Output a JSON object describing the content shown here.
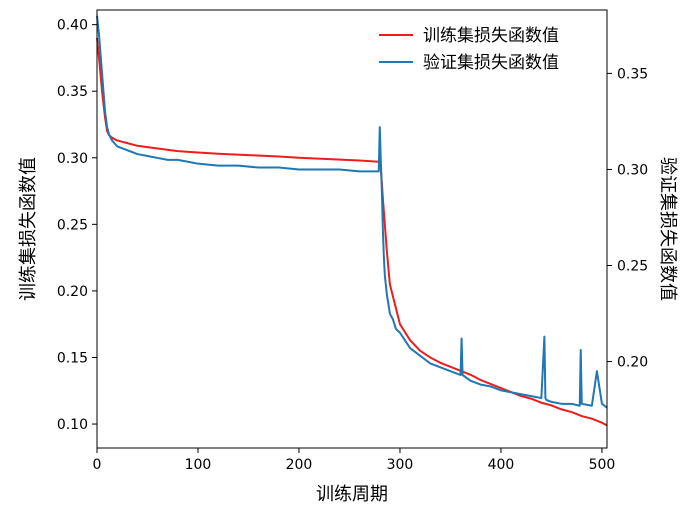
{
  "chart_data": {
    "type": "line",
    "xlabel": "训练周期",
    "ylabel_left": "训练集损失函数值",
    "ylabel_right": "验证集损失函数值",
    "xlim": [
      0,
      505
    ],
    "ylim_left": [
      0.082,
      0.411
    ],
    "ylim_right": [
      0.155,
      0.383
    ],
    "x_ticks": [
      0,
      100,
      200,
      300,
      400,
      500
    ],
    "y_ticks_left": [
      0.1,
      0.15,
      0.2,
      0.25,
      0.3,
      0.35,
      0.4
    ],
    "y_ticks_right": [
      0.2,
      0.25,
      0.3,
      0.35
    ],
    "grid": false,
    "legend_position": "top-right",
    "series": [
      {
        "name": "训练集损失函数值",
        "axis": "left",
        "color": "#ee1c1c",
        "x": [
          0,
          2,
          5,
          8,
          10,
          12,
          15,
          20,
          30,
          40,
          50,
          60,
          80,
          100,
          120,
          150,
          180,
          200,
          230,
          260,
          279,
          280,
          281,
          282,
          283,
          285,
          287,
          290,
          295,
          300,
          310,
          320,
          330,
          340,
          350,
          360,
          370,
          380,
          390,
          400,
          410,
          420,
          430,
          440,
          450,
          460,
          470,
          480,
          490,
          500,
          505
        ],
        "values": [
          0.39,
          0.375,
          0.35,
          0.33,
          0.32,
          0.317,
          0.315,
          0.313,
          0.311,
          0.309,
          0.308,
          0.307,
          0.305,
          0.304,
          0.303,
          0.302,
          0.301,
          0.3,
          0.299,
          0.298,
          0.297,
          0.298,
          0.292,
          0.282,
          0.27,
          0.25,
          0.23,
          0.205,
          0.19,
          0.175,
          0.163,
          0.155,
          0.15,
          0.146,
          0.143,
          0.14,
          0.137,
          0.133,
          0.13,
          0.127,
          0.124,
          0.121,
          0.119,
          0.116,
          0.114,
          0.111,
          0.109,
          0.106,
          0.104,
          0.101,
          0.099
        ]
      },
      {
        "name": "验证集损失函数值",
        "axis": "right",
        "color": "#1f77b4",
        "x": [
          0,
          2,
          5,
          8,
          10,
          12,
          15,
          20,
          30,
          40,
          50,
          60,
          70,
          80,
          90,
          100,
          120,
          140,
          160,
          180,
          200,
          220,
          240,
          260,
          275,
          279,
          280,
          281,
          282,
          283,
          284,
          285,
          287,
          290,
          293,
          296,
          300,
          305,
          310,
          315,
          320,
          325,
          330,
          340,
          350,
          360,
          361,
          362,
          370,
          380,
          390,
          400,
          410,
          420,
          430,
          440,
          443,
          444,
          445,
          450,
          460,
          470,
          478,
          479,
          480,
          490,
          495,
          500,
          505
        ],
        "values": [
          0.38,
          0.37,
          0.35,
          0.33,
          0.322,
          0.318,
          0.315,
          0.312,
          0.31,
          0.308,
          0.307,
          0.306,
          0.305,
          0.305,
          0.304,
          0.303,
          0.302,
          0.302,
          0.301,
          0.301,
          0.3,
          0.3,
          0.3,
          0.299,
          0.299,
          0.299,
          0.322,
          0.305,
          0.29,
          0.27,
          0.255,
          0.245,
          0.235,
          0.225,
          0.222,
          0.217,
          0.215,
          0.211,
          0.207,
          0.205,
          0.203,
          0.201,
          0.199,
          0.197,
          0.195,
          0.193,
          0.212,
          0.193,
          0.19,
          0.188,
          0.187,
          0.185,
          0.184,
          0.183,
          0.182,
          0.181,
          0.213,
          0.181,
          0.18,
          0.179,
          0.178,
          0.178,
          0.177,
          0.206,
          0.178,
          0.177,
          0.195,
          0.178,
          0.176
        ]
      }
    ]
  }
}
